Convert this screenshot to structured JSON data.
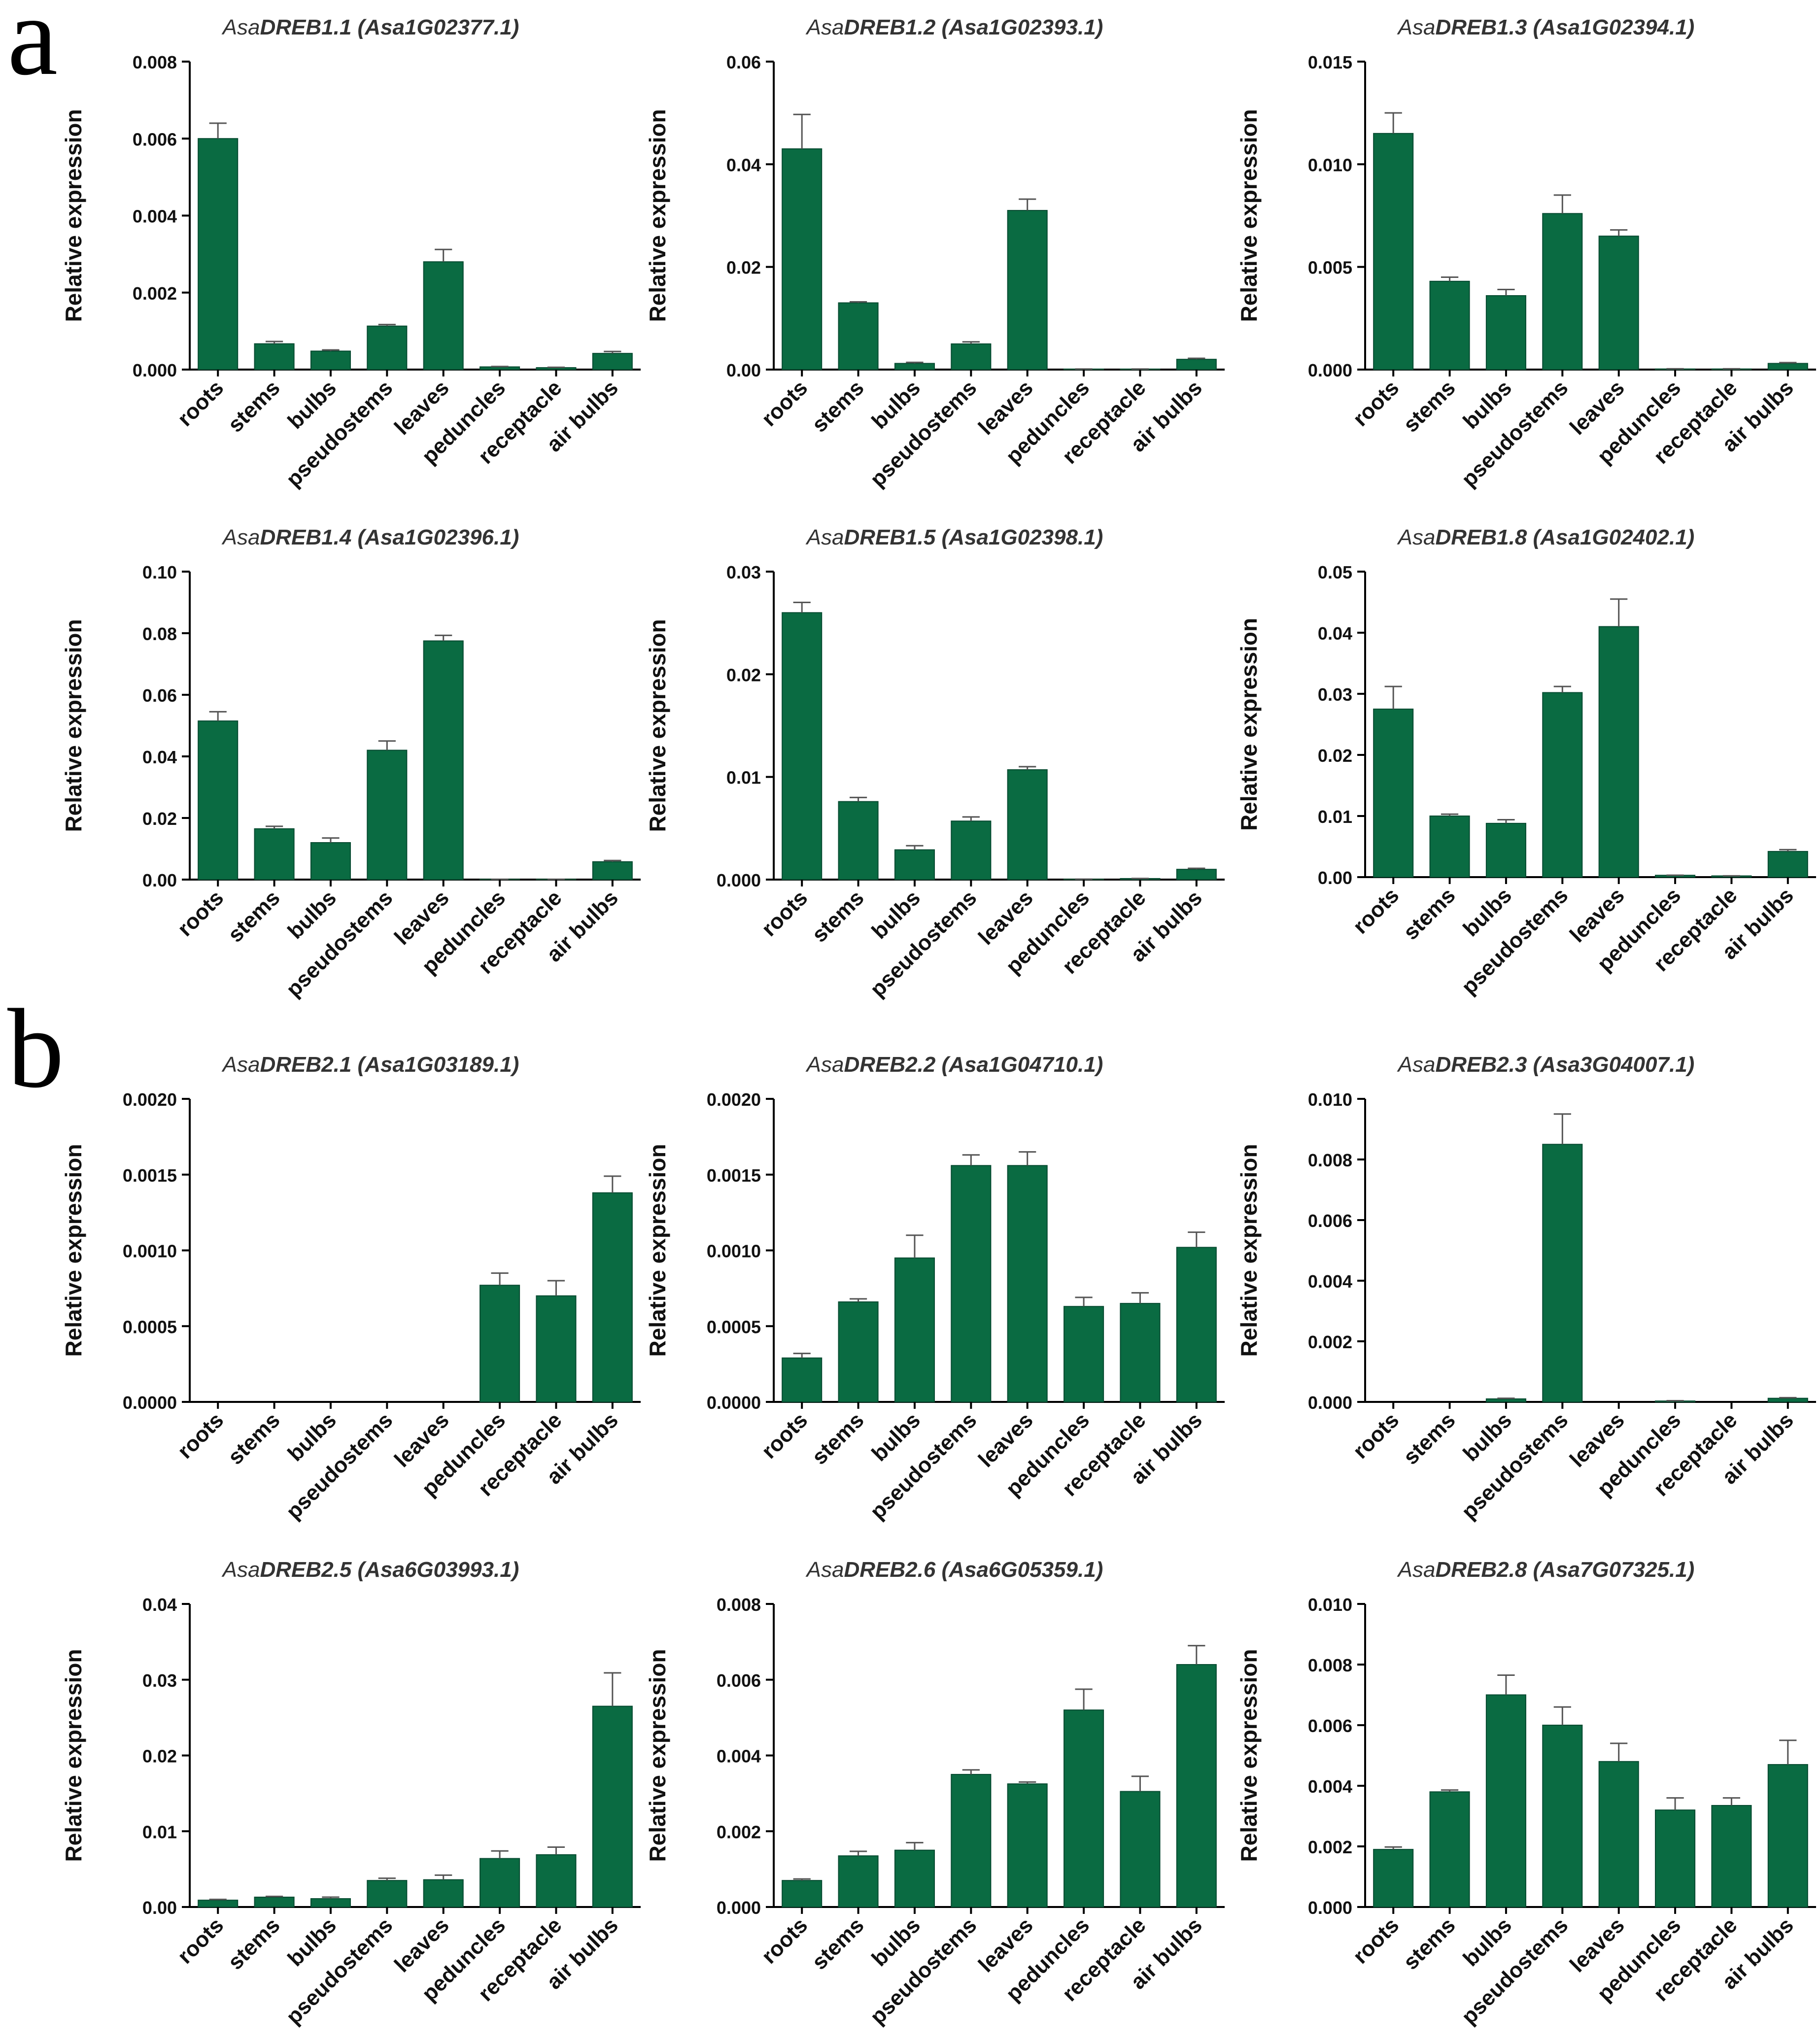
{
  "panel_labels": [
    "a",
    "b"
  ],
  "colors": {
    "bar": "#0a6b42",
    "axis": "#000000"
  },
  "chart_data": [
    {
      "type": "bar",
      "panel": "a",
      "title_prefix": "Asa",
      "title_main": "DREB1.1",
      "title_id": " (Asa1G02377.1)",
      "ylabel": "Relative expression",
      "categories": [
        "roots",
        "stems",
        "bulbs",
        "pseudostems",
        "leaves",
        "peduncles",
        "receptacle",
        "air bulbs"
      ],
      "values": [
        0.006,
        0.00067,
        0.00048,
        0.00113,
        0.0028,
        7e-05,
        5e-05,
        0.00042
      ],
      "errors": [
        0.0004,
        6e-05,
        3e-05,
        4e-05,
        0.00032,
        1e-05,
        1e-05,
        5e-05
      ],
      "ylim": [
        0,
        0.008
      ],
      "yticks": [
        "0.000",
        "0.002",
        "0.004",
        "0.006",
        "0.008"
      ]
    },
    {
      "type": "bar",
      "panel": "a",
      "title_prefix": "Asa",
      "title_main": "DREB1.2",
      "title_id": " (Asa1G02393.1)",
      "ylabel": "Relative expression",
      "categories": [
        "roots",
        "stems",
        "bulbs",
        "pseudostems",
        "leaves",
        "peduncles",
        "receptacle",
        "air bulbs"
      ],
      "values": [
        0.043,
        0.013,
        0.0012,
        0.005,
        0.031,
        0.0001,
        0.0001,
        0.002
      ],
      "errors": [
        0.0067,
        0.0002,
        0.0002,
        0.0004,
        0.0022,
        1e-05,
        1e-05,
        0.0002
      ],
      "ylim": [
        0,
        0.06
      ],
      "yticks": [
        "0.00",
        "0.02",
        "0.04",
        "0.06"
      ]
    },
    {
      "type": "bar",
      "panel": "a",
      "title_prefix": "Asa",
      "title_main": "DREB1.3",
      "title_id": " (Asa1G02394.1)",
      "ylabel": "Relative expression",
      "categories": [
        "roots",
        "stems",
        "bulbs",
        "pseudostems",
        "leaves",
        "peduncles",
        "receptacle",
        "air bulbs"
      ],
      "values": [
        0.0115,
        0.0043,
        0.0036,
        0.0076,
        0.0065,
        3e-05,
        3e-05,
        0.0003
      ],
      "errors": [
        0.001,
        0.0002,
        0.0003,
        0.0009,
        0.0003,
        1e-05,
        1e-05,
        4e-05
      ],
      "ylim": [
        0,
        0.015
      ],
      "yticks": [
        "0.000",
        "0.005",
        "0.010",
        "0.015"
      ]
    },
    {
      "type": "bar",
      "panel": "a",
      "title_prefix": "Asa",
      "title_main": "DREB1.4",
      "title_id": " (Asa1G02396.1)",
      "ylabel": "Relative expression",
      "categories": [
        "roots",
        "stems",
        "bulbs",
        "pseudostems",
        "leaves",
        "peduncles",
        "receptacle",
        "air bulbs"
      ],
      "values": [
        0.0515,
        0.0165,
        0.012,
        0.042,
        0.0775,
        0.0001,
        0.0001,
        0.0058
      ],
      "errors": [
        0.003,
        0.0008,
        0.0015,
        0.003,
        0.0018,
        1e-05,
        1e-05,
        0.0004
      ],
      "ylim": [
        0,
        0.1
      ],
      "yticks": [
        "0.00",
        "0.02",
        "0.04",
        "0.06",
        "0.08",
        "0.10"
      ]
    },
    {
      "type": "bar",
      "panel": "a",
      "title_prefix": "Asa",
      "title_main": "DREB1.5",
      "title_id": " (Asa1G02398.1)",
      "ylabel": "Relative expression",
      "categories": [
        "roots",
        "stems",
        "bulbs",
        "pseudostems",
        "leaves",
        "peduncles",
        "receptacle",
        "air bulbs"
      ],
      "values": [
        0.026,
        0.0076,
        0.0029,
        0.0057,
        0.0107,
        3e-05,
        0.0001,
        0.001
      ],
      "errors": [
        0.001,
        0.0004,
        0.0004,
        0.0004,
        0.0003,
        1e-05,
        1e-05,
        0.0001
      ],
      "ylim": [
        0,
        0.03
      ],
      "yticks": [
        "0.000",
        "0.01",
        "0.02",
        "0.03"
      ]
    },
    {
      "type": "bar",
      "panel": "a",
      "title_prefix": "Asa",
      "title_main": "DREB1.8",
      "title_id": " (Asa1G02402.1)",
      "ylabel": "Relative expression",
      "categories": [
        "roots",
        "stems",
        "bulbs",
        "pseudostems",
        "leaves",
        "peduncles",
        "receptacle",
        "air bulbs"
      ],
      "values": [
        0.0275,
        0.01,
        0.0088,
        0.0302,
        0.041,
        0.0003,
        0.0002,
        0.0042
      ],
      "errors": [
        0.0037,
        0.0003,
        0.0006,
        0.001,
        0.0045,
        1e-05,
        1e-05,
        0.0003
      ],
      "ylim": [
        0,
        0.05
      ],
      "yticks": [
        "0.00",
        "0.01",
        "0.02",
        "0.03",
        "0.04",
        "0.05"
      ]
    },
    {
      "type": "bar",
      "panel": "b",
      "title_prefix": "Asa",
      "title_main": "DREB2.1",
      "title_id": " (Asa1G03189.1)",
      "ylabel": "Relative expression",
      "categories": [
        "roots",
        "stems",
        "bulbs",
        "pseudostems",
        "leaves",
        "peduncles",
        "receptacle",
        "air bulbs"
      ],
      "values": [
        0,
        0,
        0,
        0,
        0,
        0.00077,
        0.0007,
        0.00138
      ],
      "errors": [
        0,
        0,
        0,
        0,
        0,
        8e-05,
        0.0001,
        0.00011
      ],
      "ylim": [
        0,
        0.002
      ],
      "yticks": [
        "0.0000",
        "0.0005",
        "0.0010",
        "0.0015",
        "0.0020"
      ]
    },
    {
      "type": "bar",
      "panel": "b",
      "title_prefix": "Asa",
      "title_main": "DREB2.2",
      "title_id": " (Asa1G04710.1)",
      "ylabel": "Relative expression",
      "categories": [
        "roots",
        "stems",
        "bulbs",
        "pseudostems",
        "leaves",
        "peduncles",
        "receptacle",
        "air bulbs"
      ],
      "values": [
        0.00029,
        0.00066,
        0.00095,
        0.00156,
        0.00156,
        0.00063,
        0.00065,
        0.00102
      ],
      "errors": [
        3e-05,
        2e-05,
        0.00015,
        7e-05,
        9e-05,
        6e-05,
        7e-05,
        0.0001
      ],
      "ylim": [
        0,
        0.002
      ],
      "yticks": [
        "0.0000",
        "0.0005",
        "0.0010",
        "0.0015",
        "0.0020"
      ]
    },
    {
      "type": "bar",
      "panel": "b",
      "title_prefix": "Asa",
      "title_main": "DREB2.3",
      "title_id": " (Asa3G04007.1)",
      "ylabel": "Relative expression",
      "categories": [
        "roots",
        "stems",
        "bulbs",
        "pseudostems",
        "leaves",
        "peduncles",
        "receptacle",
        "air bulbs"
      ],
      "values": [
        0,
        0,
        0.0001,
        0.0085,
        0,
        3e-05,
        0,
        0.00012
      ],
      "errors": [
        0,
        0,
        2e-05,
        0.001,
        0,
        1e-05,
        0,
        2e-05
      ],
      "ylim": [
        0,
        0.01
      ],
      "yticks": [
        "0.000",
        "0.002",
        "0.004",
        "0.006",
        "0.008",
        "0.010"
      ]
    },
    {
      "type": "bar",
      "panel": "b",
      "title_prefix": "Asa",
      "title_main": "DREB2.5",
      "title_id": " (Asa6G03993.1)",
      "ylabel": "Relative expression",
      "categories": [
        "roots",
        "stems",
        "bulbs",
        "pseudostems",
        "leaves",
        "peduncles",
        "receptacle",
        "air bulbs"
      ],
      "values": [
        0.0009,
        0.0013,
        0.0011,
        0.0035,
        0.0036,
        0.0064,
        0.0069,
        0.0265
      ],
      "errors": [
        0.0001,
        0.0001,
        0.0002,
        0.0003,
        0.0006,
        0.001,
        0.001,
        0.0044
      ],
      "ylim": [
        0,
        0.04
      ],
      "yticks": [
        "0.00",
        "0.01",
        "0.02",
        "0.03",
        "0.04"
      ]
    },
    {
      "type": "bar",
      "panel": "b",
      "title_prefix": "Asa",
      "title_main": "DREB2.6",
      "title_id": " (Asa6G05359.1)",
      "ylabel": "Relative expression",
      "categories": [
        "roots",
        "stems",
        "bulbs",
        "pseudostems",
        "leaves",
        "peduncles",
        "receptacle",
        "air bulbs"
      ],
      "values": [
        0.0007,
        0.00135,
        0.0015,
        0.0035,
        0.00325,
        0.0052,
        0.00305,
        0.0064
      ],
      "errors": [
        4e-05,
        0.00012,
        0.0002,
        0.00012,
        5e-05,
        0.00055,
        0.0004,
        0.0005
      ],
      "ylim": [
        0,
        0.008
      ],
      "yticks": [
        "0.000",
        "0.002",
        "0.004",
        "0.006",
        "0.008"
      ]
    },
    {
      "type": "bar",
      "panel": "b",
      "title_prefix": "Asa",
      "title_main": "DREB2.8",
      "title_id": " (Asa7G07325.1)",
      "ylabel": "Relative expression",
      "categories": [
        "roots",
        "stems",
        "bulbs",
        "pseudostems",
        "leaves",
        "peduncles",
        "receptacle",
        "air bulbs"
      ],
      "values": [
        0.0019,
        0.0038,
        0.007,
        0.006,
        0.0048,
        0.0032,
        0.00335,
        0.0047
      ],
      "errors": [
        8e-05,
        6e-05,
        0.00065,
        0.0006,
        0.0006,
        0.0004,
        0.00025,
        0.0008
      ],
      "ylim": [
        0,
        0.01
      ],
      "yticks": [
        "0.000",
        "0.002",
        "0.004",
        "0.006",
        "0.008",
        "0.010"
      ]
    }
  ]
}
